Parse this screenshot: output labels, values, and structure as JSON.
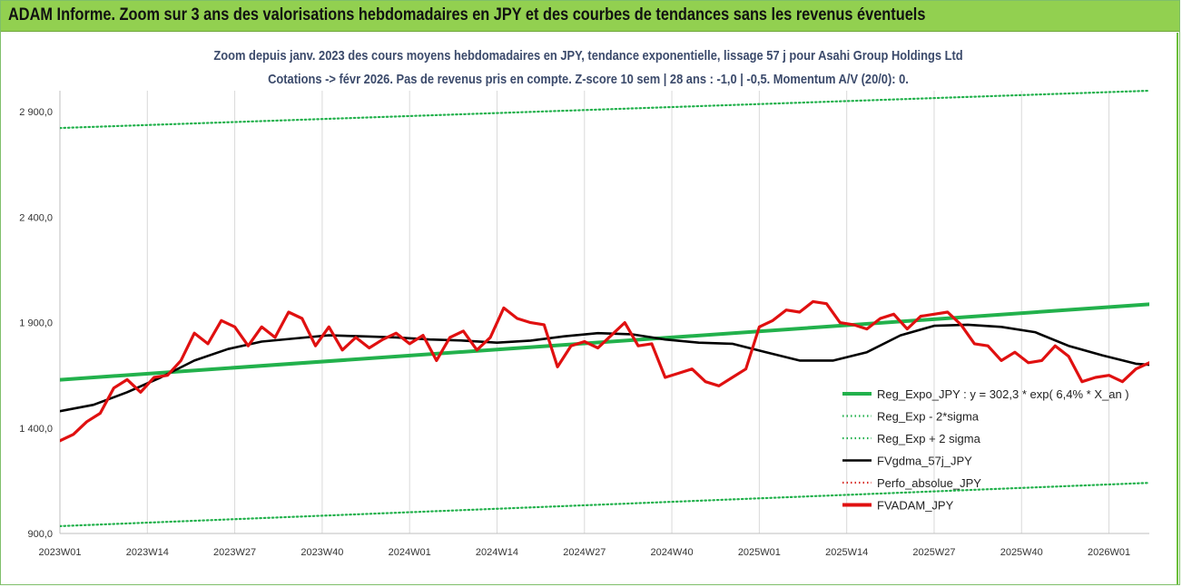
{
  "header": {
    "title": "ADAM Informe. Zoom sur 3 ans des valorisations hebdomadaires en JPY et des courbes de tendances sans les revenus éventuels"
  },
  "chart_data": {
    "type": "line",
    "title": "Zoom depuis janv. 2023 des cours moyens hebdomadaires en JPY, tendance exponentielle, lissage 57 j pour Asahi Group Holdings Ltd",
    "subtitle": "Cotations -> févr 2026.  Pas de revenus pris en compte. Z-score 10 sem | 28 ans : -1,0 | -0,5. Momentum A/V (20/0): 0.",
    "xlabel": "",
    "ylabel": "",
    "ylim": [
      900,
      3000
    ],
    "y_ticks": [
      "900,0",
      "1 400,0",
      "1 900,0",
      "2 400,0",
      "2 900,0"
    ],
    "y_tick_values": [
      900,
      1400,
      1900,
      2400,
      2900
    ],
    "x_ticks": [
      "2023W01",
      "2023W14",
      "2023W27",
      "2023W40",
      "2024W01",
      "2024W14",
      "2024W27",
      "2024W40",
      "2025W01",
      "2025W14",
      "2025W27",
      "2025W40",
      "2026W01"
    ],
    "n_weeks": 163,
    "grid": "vertical",
    "legend_position": "right",
    "series": [
      {
        "name": "Reg_Expo_JPY : y = 302,3 * exp( 6,4% *  X_an )",
        "color": "#22b14c",
        "style": "solid-thick",
        "x": [
          0,
          162
        ],
        "values": [
          1629,
          1987
        ]
      },
      {
        "name": "Reg_Exp - 2*sigma",
        "color": "#22b14c",
        "style": "dotted",
        "x": [
          0,
          162
        ],
        "values": [
          935,
          1140
        ]
      },
      {
        "name": "Reg_Exp + 2 sigma",
        "color": "#22b14c",
        "style": "dotted",
        "x": [
          0,
          162
        ],
        "values": [
          2823,
          3000
        ]
      },
      {
        "name": "FVgdma_57j_JPY",
        "color": "#000000",
        "style": "solid",
        "x": [
          0,
          5,
          10,
          15,
          20,
          25,
          30,
          35,
          40,
          45,
          50,
          55,
          60,
          65,
          70,
          75,
          80,
          85,
          90,
          95,
          100,
          105,
          110,
          115,
          120,
          125,
          130,
          135,
          140,
          145,
          150,
          155,
          160,
          162
        ],
        "values": [
          1480,
          1510,
          1570,
          1640,
          1720,
          1775,
          1810,
          1825,
          1840,
          1835,
          1830,
          1820,
          1815,
          1805,
          1815,
          1835,
          1850,
          1845,
          1820,
          1805,
          1800,
          1760,
          1720,
          1720,
          1760,
          1840,
          1885,
          1890,
          1880,
          1855,
          1790,
          1745,
          1705,
          1700
        ]
      },
      {
        "name": "Perfo_absolue_JPY",
        "color": "#d9302b",
        "style": "dotted",
        "x": [],
        "values": []
      },
      {
        "name": "FVADAM_JPY",
        "color": "#e01010",
        "style": "solid-thick",
        "x": [
          0,
          2,
          4,
          6,
          8,
          10,
          12,
          14,
          16,
          18,
          20,
          22,
          24,
          26,
          28,
          30,
          32,
          34,
          36,
          38,
          40,
          42,
          44,
          46,
          48,
          50,
          52,
          54,
          56,
          58,
          60,
          62,
          64,
          66,
          68,
          70,
          72,
          74,
          76,
          78,
          80,
          82,
          84,
          86,
          88,
          90,
          92,
          94,
          96,
          98,
          100,
          102,
          104,
          106,
          108,
          110,
          112,
          114,
          116,
          118,
          120,
          122,
          124,
          126,
          128,
          130,
          132,
          134,
          136,
          138,
          140,
          142,
          144,
          146,
          148,
          150,
          152,
          154,
          156,
          158,
          160,
          162
        ],
        "values": [
          1340,
          1370,
          1430,
          1470,
          1590,
          1630,
          1570,
          1640,
          1650,
          1720,
          1850,
          1800,
          1910,
          1880,
          1790,
          1880,
          1830,
          1950,
          1920,
          1790,
          1880,
          1770,
          1830,
          1780,
          1820,
          1850,
          1800,
          1840,
          1720,
          1830,
          1860,
          1770,
          1830,
          1970,
          1920,
          1900,
          1890,
          1690,
          1790,
          1810,
          1780,
          1840,
          1900,
          1790,
          1800,
          1640,
          1660,
          1680,
          1620,
          1600,
          1640,
          1680,
          1880,
          1910,
          1960,
          1950,
          2000,
          1990,
          1900,
          1890,
          1870,
          1920,
          1940,
          1870,
          1930,
          1940,
          1950,
          1890,
          1800,
          1790,
          1720,
          1760,
          1710,
          1720,
          1790,
          1740,
          1620,
          1640,
          1650,
          1620,
          1680,
          1710
        ]
      }
    ]
  }
}
